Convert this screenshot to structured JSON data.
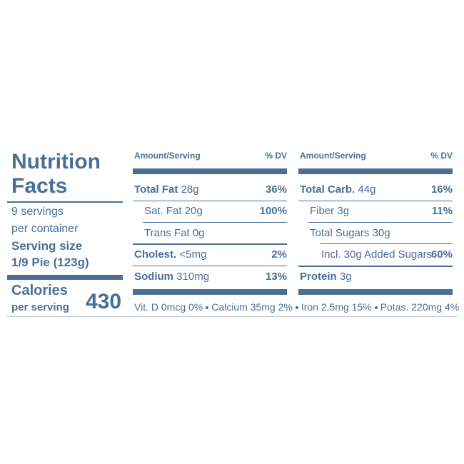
{
  "header": {
    "title": "Nutrition Facts",
    "servings_lines": [
      "9 servings",
      "per container"
    ],
    "serving_size_label": "Serving size",
    "serving_size": "1/9 Pie (123g)",
    "calories_label": "Calories",
    "calories_sub": "per serving",
    "calories": "430"
  },
  "columns": [
    {
      "amount_header": "Amount/Serving",
      "dv_header": "% DV",
      "rows": [
        {
          "name": "Total Fat",
          "amount": "28g",
          "dv": "36%"
        },
        {
          "name": "Sat. Fat",
          "amount": "20g",
          "dv": "100%"
        },
        {
          "name": "Trans Fat",
          "amount": "0g",
          "dv": ""
        },
        {
          "name": "Cholest.",
          "amount": "<5mg",
          "dv": "2%"
        },
        {
          "name": "Sodium",
          "amount": "310mg",
          "dv": "13%"
        }
      ]
    },
    {
      "amount_header": "Amount/Serving",
      "dv_header": "% DV",
      "rows": [
        {
          "name": "Total Carb.",
          "amount": "44g",
          "dv": "16%"
        },
        {
          "name": "Fiber",
          "amount": "3g",
          "dv": "11%"
        },
        {
          "name": "Total Sugars",
          "amount": "30g",
          "dv": ""
        },
        {
          "name": "Incl. 30g Added Sugars",
          "amount": "",
          "dv": "60%"
        },
        {
          "name": "Protein",
          "amount": "3g",
          "dv": ""
        }
      ]
    }
  ],
  "footer": [
    "Vit. D 0mcg 0%",
    "Calcium 35mg 2%",
    "Iron 2.5mg 15%",
    "Potas. 220mg 4%"
  ]
}
